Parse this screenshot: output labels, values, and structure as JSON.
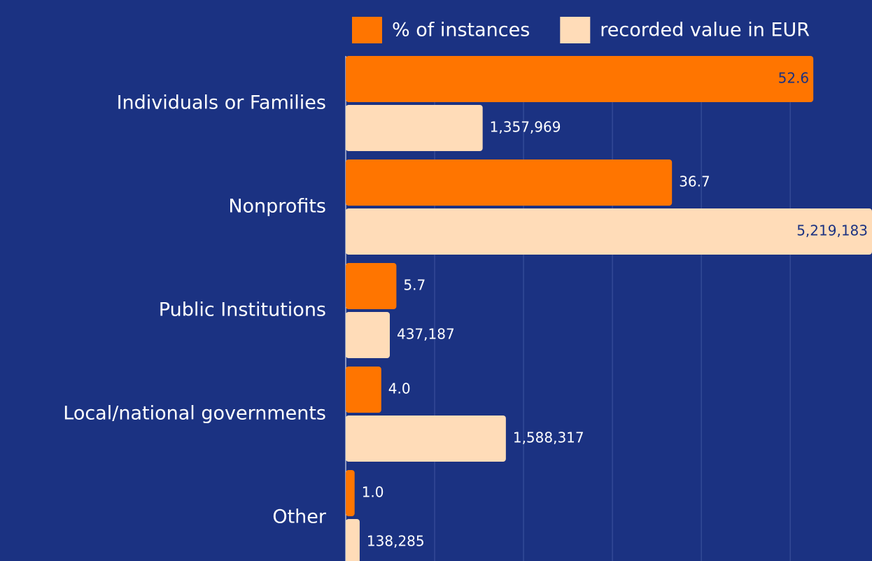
{
  "chart_data": {
    "type": "hbar",
    "categories": [
      "Individuals or Families",
      "Nonprofits",
      "Public Institutions",
      "Local/national governments",
      "Other"
    ],
    "series": [
      {
        "name": "% of instances",
        "color": "#ff7500",
        "values": [
          52.6,
          36.7,
          5.7,
          4.0,
          1.0
        ],
        "value_labels": [
          "52.6",
          "36.7",
          "5.7",
          "4.0",
          "1.0"
        ]
      },
      {
        "name": "recorded value in EUR",
        "color": "#ffdcb8",
        "axis": "x2",
        "values": [
          1357969,
          5219183,
          437187,
          1588317,
          138285
        ],
        "value_labels": [
          "1,357,969",
          "5,219,183",
          "437,187",
          "1,588,317",
          "138,285"
        ]
      }
    ],
    "xlim": [
      0,
      59.2
    ],
    "xticks": [
      0,
      10,
      20,
      30,
      40,
      50
    ],
    "x2lim": [
      0,
      5219183
    ],
    "grid": true,
    "legend": "top"
  }
}
